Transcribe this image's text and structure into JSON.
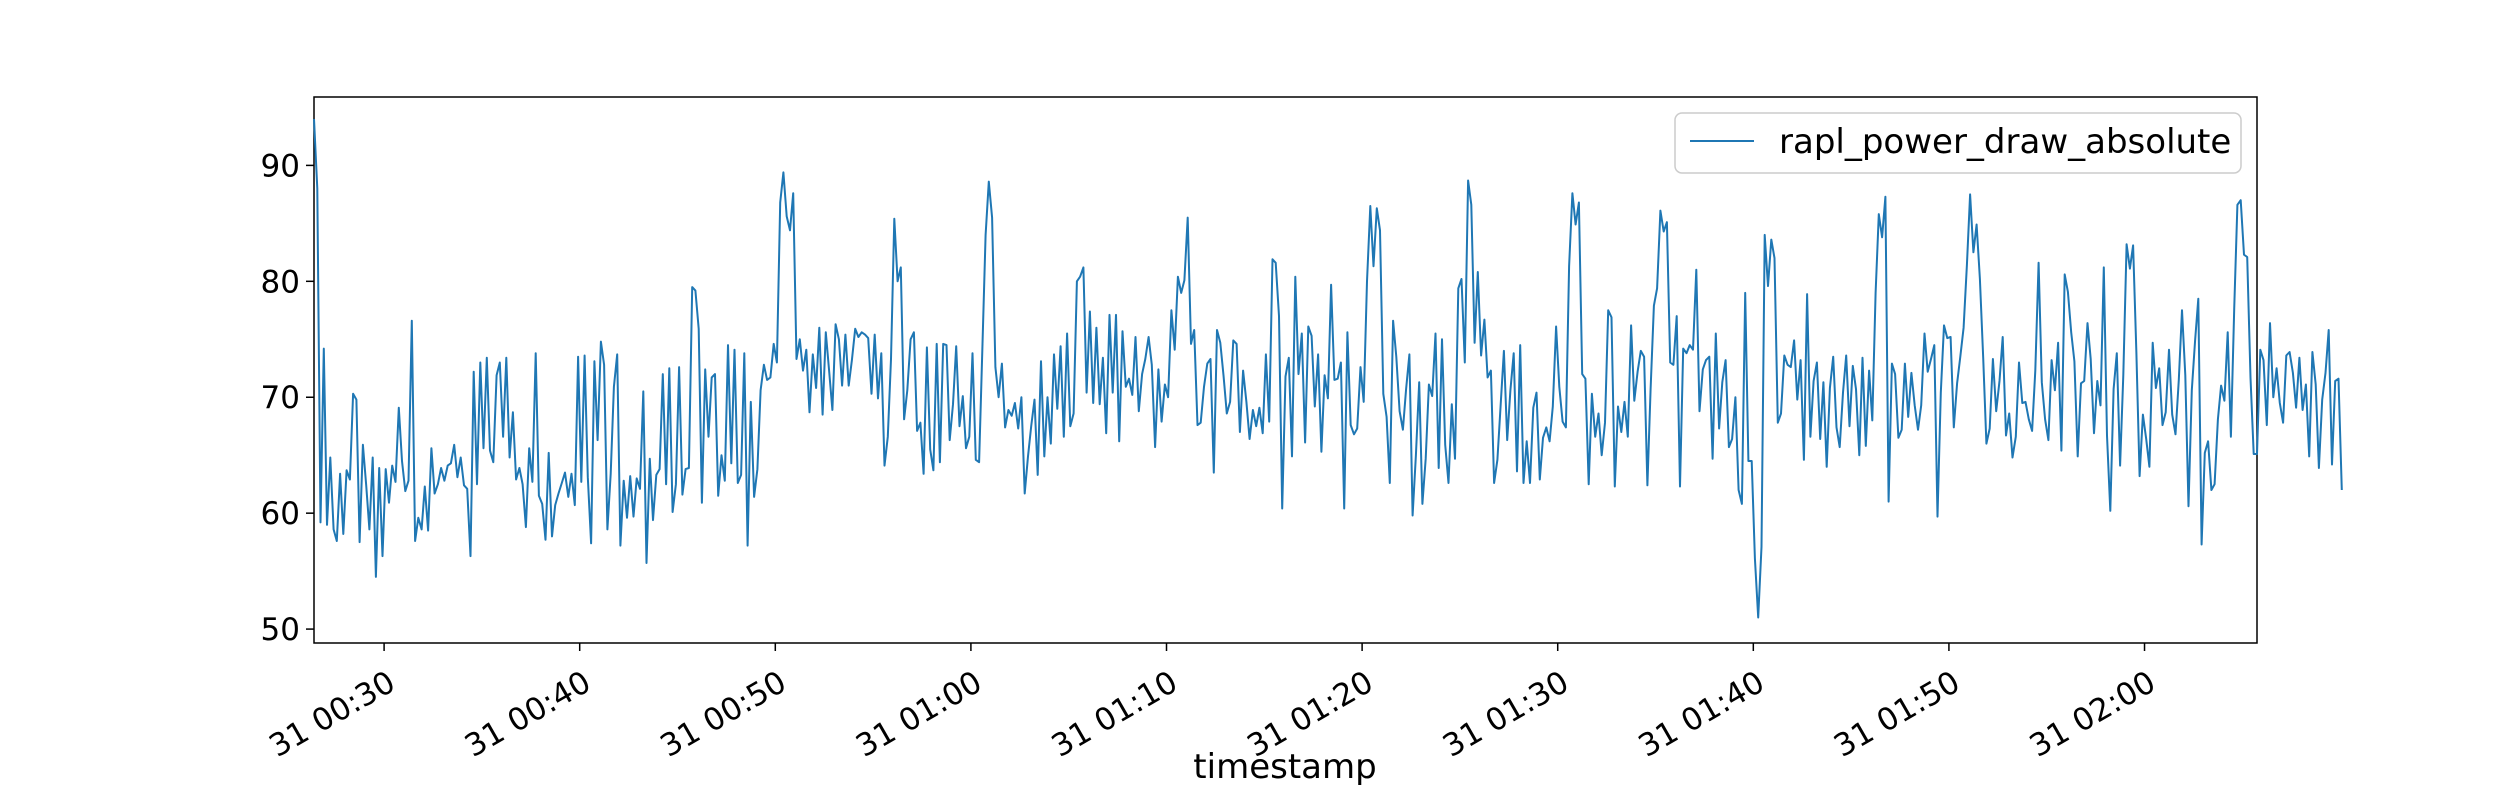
{
  "chart_data": {
    "type": "line",
    "xlabel": "timestamp",
    "ylabel": "",
    "title": "",
    "legend": {
      "placement": "top-right",
      "entries": [
        "rapl_power_draw_absolute"
      ]
    },
    "grid": false,
    "x_range": [
      "31 00:26:25",
      "31 02:05:45"
    ],
    "ylim": [
      48.8,
      95.9
    ],
    "x_ticks": [
      {
        "time": "31 00:30:00",
        "label": "31 00:30"
      },
      {
        "time": "31 00:40:00",
        "label": "31 00:40"
      },
      {
        "time": "31 00:50:00",
        "label": "31 00:50"
      },
      {
        "time": "31 01:00:00",
        "label": "31 01:00"
      },
      {
        "time": "31 01:10:00",
        "label": "31 01:10"
      },
      {
        "time": "31 01:20:00",
        "label": "31 01:20"
      },
      {
        "time": "31 01:30:00",
        "label": "31 01:30"
      },
      {
        "time": "31 01:40:00",
        "label": "31 01:40"
      },
      {
        "time": "31 01:50:00",
        "label": "31 01:50"
      },
      {
        "time": "31 02:00:00",
        "label": "31 02:00"
      }
    ],
    "y_ticks": [
      {
        "value": 50,
        "label": "50"
      },
      {
        "value": 60,
        "label": "60"
      },
      {
        "value": 70,
        "label": "70"
      },
      {
        "value": 80,
        "label": "80"
      },
      {
        "value": 90,
        "label": "90"
      }
    ],
    "colors": {
      "series": "#1f77b4",
      "axes": "#000000"
    },
    "series": [
      {
        "name": "rapl_power_draw_absolute",
        "start_time": "31 00:26:25",
        "interval_seconds": 10,
        "values": [
          94.0,
          88.0,
          59.2,
          74.2,
          59.0,
          64.8,
          58.6,
          57.6,
          63.4,
          58.2,
          63.7,
          62.9,
          70.3,
          69.8,
          57.5,
          65.9,
          62.4,
          58.6,
          64.8,
          54.5,
          63.9,
          56.3,
          63.8,
          60.9,
          64.1,
          62.7,
          69.1,
          64.5,
          61.9,
          62.8,
          76.6,
          57.6,
          59.6,
          58.6,
          62.3,
          58.5,
          65.6,
          61.7,
          62.5,
          63.9,
          62.8,
          64.1,
          64.3,
          65.9,
          63.1,
          64.8,
          62.4,
          62.1,
          56.3,
          72.2,
          62.5,
          73.0,
          65.6,
          73.4,
          65.4,
          64.4,
          71.9,
          73.0,
          66.6,
          73.4,
          64.8,
          68.7,
          62.9,
          63.9,
          62.5,
          58.8,
          65.6,
          62.7,
          73.8,
          61.5,
          60.8,
          57.7,
          65.2,
          58.0,
          60.7,
          61.7,
          62.6,
          63.5,
          61.4,
          63.4,
          60.7,
          73.5,
          62.7,
          73.6,
          63.1,
          57.4,
          73.1,
          66.3,
          74.8,
          72.8,
          58.6,
          63.4,
          70.9,
          73.7,
          57.2,
          62.8,
          59.6,
          63.2,
          59.7,
          63.0,
          62.1,
          70.5,
          55.7,
          64.7,
          59.4,
          63.3,
          63.8,
          72.0,
          62.5,
          72.5,
          60.1,
          62.5,
          72.6,
          61.6,
          63.8,
          63.9,
          79.5,
          79.2,
          75.9,
          60.9,
          72.4,
          66.6,
          71.7,
          72.0,
          61.5,
          65.0,
          62.8,
          74.5,
          64.3,
          74.1,
          62.6,
          63.3,
          73.8,
          57.2,
          69.6,
          61.4,
          63.8,
          70.6,
          72.8,
          71.5,
          71.7,
          74.6,
          73.0,
          86.8,
          89.4,
          85.6,
          84.4,
          87.6,
          73.3,
          75.0,
          72.3,
          74.1,
          68.7,
          73.7,
          70.8,
          76.0,
          68.5,
          75.6,
          72.3,
          68.9,
          76.3,
          75.0,
          71.0,
          75.4,
          71.0,
          73.2,
          75.9,
          75.2,
          75.6,
          75.4,
          75.1,
          70.3,
          75.4,
          69.9,
          73.8,
          64.1,
          66.6,
          73.3,
          85.4,
          80.0,
          81.2,
          68.1,
          70.6,
          75.0,
          75.6,
          67.1,
          67.8,
          63.4,
          74.3,
          65.5,
          63.7,
          74.6,
          64.4,
          74.6,
          74.5,
          66.3,
          69.4,
          74.4,
          67.5,
          70.1,
          65.6,
          66.6,
          73.8,
          64.6,
          64.4,
          74.0,
          84.0,
          88.6,
          85.5,
          72.6,
          70.0,
          72.9,
          67.4,
          68.9,
          68.4,
          69.5,
          67.3,
          70.0,
          61.7,
          64.9,
          67.5,
          69.8,
          63.3,
          73.1,
          64.9,
          70.0,
          66.0,
          73.7,
          69.0,
          74.4,
          66.6,
          75.5,
          67.5,
          68.6,
          80.0,
          80.4,
          81.2,
          70.4,
          77.4,
          69.5,
          76.0,
          69.4,
          73.4,
          66.9,
          77.1,
          70.4,
          77.1,
          66.2,
          75.7,
          70.9,
          71.6,
          70.2,
          75.2,
          68.8,
          72.0,
          73.3,
          75.2,
          72.8,
          65.7,
          72.4,
          67.9,
          71.1,
          70.0,
          77.5,
          74.1,
          80.4,
          79.0,
          80.1,
          85.5,
          74.6,
          75.8,
          67.6,
          67.8,
          70.9,
          72.9,
          73.3,
          63.5,
          75.8,
          74.7,
          71.8,
          68.6,
          69.6,
          74.9,
          74.6,
          67.0,
          72.3,
          69.6,
          66.4,
          68.9,
          67.5,
          69.1,
          66.9,
          73.7,
          67.9,
          81.9,
          81.6,
          77.0,
          60.4,
          71.8,
          73.4,
          64.9,
          80.4,
          72.0,
          75.5,
          66.1,
          76.1,
          75.3,
          69.2,
          73.7,
          65.3,
          71.9,
          69.9,
          79.7,
          71.5,
          71.6,
          73.0,
          60.4,
          75.6,
          67.6,
          66.8,
          67.3,
          72.6,
          69.6,
          80.0,
          86.5,
          81.3,
          86.3,
          84.4,
          70.3,
          68.3,
          62.6,
          76.6,
          73.5,
          68.8,
          67.2,
          70.7,
          73.7,
          59.8,
          65.0,
          71.3,
          60.8,
          64.7,
          71.1,
          70.1,
          75.5,
          63.9,
          75.0,
          65.9,
          62.6,
          69.4,
          64.7,
          79.4,
          80.2,
          73.0,
          88.7,
          86.6,
          74.7,
          80.8,
          73.6,
          76.7,
          71.7,
          72.3,
          62.6,
          64.6,
          69.4,
          74.0,
          66.3,
          70.6,
          73.8,
          63.6,
          74.5,
          62.6,
          66.2,
          62.6,
          69.1,
          70.4,
          62.9,
          66.5,
          67.4,
          66.2,
          69.2,
          76.1,
          70.9,
          67.9,
          67.4,
          81.3,
          87.6,
          84.9,
          86.8,
          72.0,
          71.6,
          62.5,
          70.3,
          66.6,
          68.6,
          65.0,
          67.8,
          77.5,
          76.9,
          62.3,
          69.2,
          67.0,
          69.6,
          66.6,
          76.2,
          69.7,
          72.2,
          74.0,
          73.5,
          62.4,
          70.7,
          77.9,
          79.4,
          86.1,
          84.3,
          85.1,
          73.0,
          72.8,
          77.0,
          62.3,
          74.2,
          73.8,
          74.5,
          74.1,
          81.0,
          68.8,
          72.4,
          73.2,
          73.5,
          64.7,
          75.5,
          67.3,
          71.3,
          73.2,
          65.7,
          66.4,
          70.0,
          62.0,
          60.8,
          79.0,
          64.5,
          64.5,
          56.1,
          51.0,
          57.1,
          84.0,
          79.6,
          83.6,
          82.0,
          67.8,
          68.6,
          73.6,
          72.8,
          72.6,
          74.9,
          69.8,
          73.2,
          64.6,
          78.9,
          66.6,
          71.4,
          73.0,
          66.4,
          71.3,
          64.0,
          70.8,
          73.5,
          67.4,
          65.7,
          70.4,
          73.6,
          67.5,
          72.7,
          70.7,
          65.0,
          73.4,
          65.8,
          72.3,
          68.0,
          79.0,
          85.8,
          83.8,
          87.3,
          61.0,
          72.9,
          72.0,
          66.5,
          67.2,
          72.9,
          68.3,
          72.1,
          69.3,
          67.2,
          69.3,
          75.5,
          72.2,
          73.3,
          74.5,
          59.7,
          70.4,
          76.2,
          75.1,
          75.2,
          67.4,
          71.2,
          73.5,
          76.0,
          81.4,
          87.5,
          82.5,
          84.9,
          80.2,
          73.4,
          66.0,
          67.3,
          73.3,
          68.8,
          71.4,
          75.2,
          66.7,
          68.6,
          64.8,
          66.6,
          73.0,
          69.5,
          69.6,
          68.1,
          67.1,
          72.3,
          81.6,
          71.3,
          68.1,
          66.3,
          73.2,
          70.6,
          74.7,
          65.4,
          80.6,
          79.1,
          75.6,
          73.1,
          64.9,
          71.2,
          71.4,
          76.4,
          73.3,
          66.9,
          71.4,
          69.3,
          81.2,
          66.7,
          60.2,
          70.7,
          73.8,
          64.1,
          71.9,
          83.2,
          81.1,
          83.1,
          73.8,
          63.2,
          68.5,
          66.4,
          64.0,
          74.7,
          70.8,
          72.5,
          67.6,
          68.7,
          74.1,
          68.5,
          66.8,
          71.5,
          77.5,
          71.9,
          60.6,
          70.6,
          74.9,
          78.5,
          57.3,
          65.2,
          66.2,
          62.0,
          62.5,
          68.1,
          71.0,
          69.7,
          75.6,
          66.6,
          77.6,
          86.6,
          87.0,
          82.3,
          82.1,
          71.7,
          65.1,
          65.1,
          74.1,
          73.2,
          67.6,
          76.4,
          70.0,
          72.5,
          69.5,
          67.8,
          73.6,
          73.9,
          72.1,
          69.1,
          73.4,
          68.9,
          71.1,
          64.9,
          73.9,
          71.1,
          63.9,
          69.8,
          72.1,
          75.8,
          64.2,
          71.4,
          71.6,
          62.0
        ]
      }
    ]
  }
}
